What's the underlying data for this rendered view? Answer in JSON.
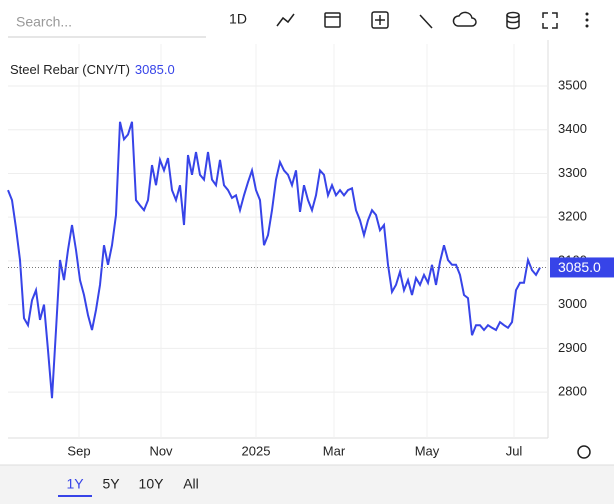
{
  "search_placeholder": "Search...",
  "toolbar": {
    "interval": "1D"
  },
  "ranges": {
    "options": [
      "1Y",
      "5Y",
      "10Y",
      "All"
    ],
    "selected": "1Y"
  },
  "chart_data": {
    "type": "line",
    "series": [
      {
        "name": "Steel Rebar (CNY/T)",
        "color": "#3744e8",
        "values": [
          3262,
          3239,
          3175,
          3102,
          2969,
          2953,
          3010,
          3033,
          2965,
          3000,
          2896,
          2786,
          2942,
          3102,
          3056,
          3125,
          3182,
          3125,
          3056,
          3022,
          2976,
          2942,
          2988,
          3045,
          3136,
          3091,
          3136,
          3205,
          3418,
          3378,
          3389,
          3418,
          3239,
          3227,
          3216,
          3239,
          3319,
          3273,
          3331,
          3307,
          3335,
          3262,
          3239,
          3273,
          3182,
          3342,
          3297,
          3349,
          3297,
          3286,
          3349,
          3286,
          3273,
          3331,
          3273,
          3262,
          3244,
          3250,
          3216,
          3250,
          3280,
          3307,
          3262,
          3239,
          3136,
          3159,
          3216,
          3286,
          3326,
          3307,
          3297,
          3273,
          3307,
          3212,
          3273,
          3239,
          3216,
          3250,
          3307,
          3297,
          3250,
          3273,
          3250,
          3262,
          3250,
          3262,
          3266,
          3216,
          3193,
          3159,
          3193,
          3216,
          3205,
          3170,
          3182,
          3091,
          3029,
          3045,
          3075,
          3033,
          3056,
          3022,
          3061,
          3045,
          3068,
          3050,
          3091,
          3045,
          3098,
          3136,
          3102,
          3091,
          3091,
          3068,
          3022,
          3015,
          2930,
          2953,
          2953,
          2942,
          2953,
          2947,
          2942,
          2960,
          2953,
          2947,
          2960,
          3033,
          3050,
          3050,
          3102,
          3079,
          3068,
          3085
        ]
      }
    ],
    "current_value": {
      "value": 3085,
      "label": "3085.0"
    },
    "xlim": [
      0,
      135
    ],
    "xticks": [
      {
        "value": 17.75,
        "label": "Sep"
      },
      {
        "value": 38.25,
        "label": "Nov"
      },
      {
        "value": 62,
        "label": "2025"
      },
      {
        "value": 81.5,
        "label": "Mar"
      },
      {
        "value": 104.75,
        "label": "May"
      },
      {
        "value": 126.5,
        "label": "Jul"
      }
    ],
    "ylim": [
      2695,
      3596
    ],
    "yticks": [
      2800,
      2900,
      3000,
      3100,
      3200,
      3300,
      3400,
      3500
    ],
    "grid": true
  }
}
